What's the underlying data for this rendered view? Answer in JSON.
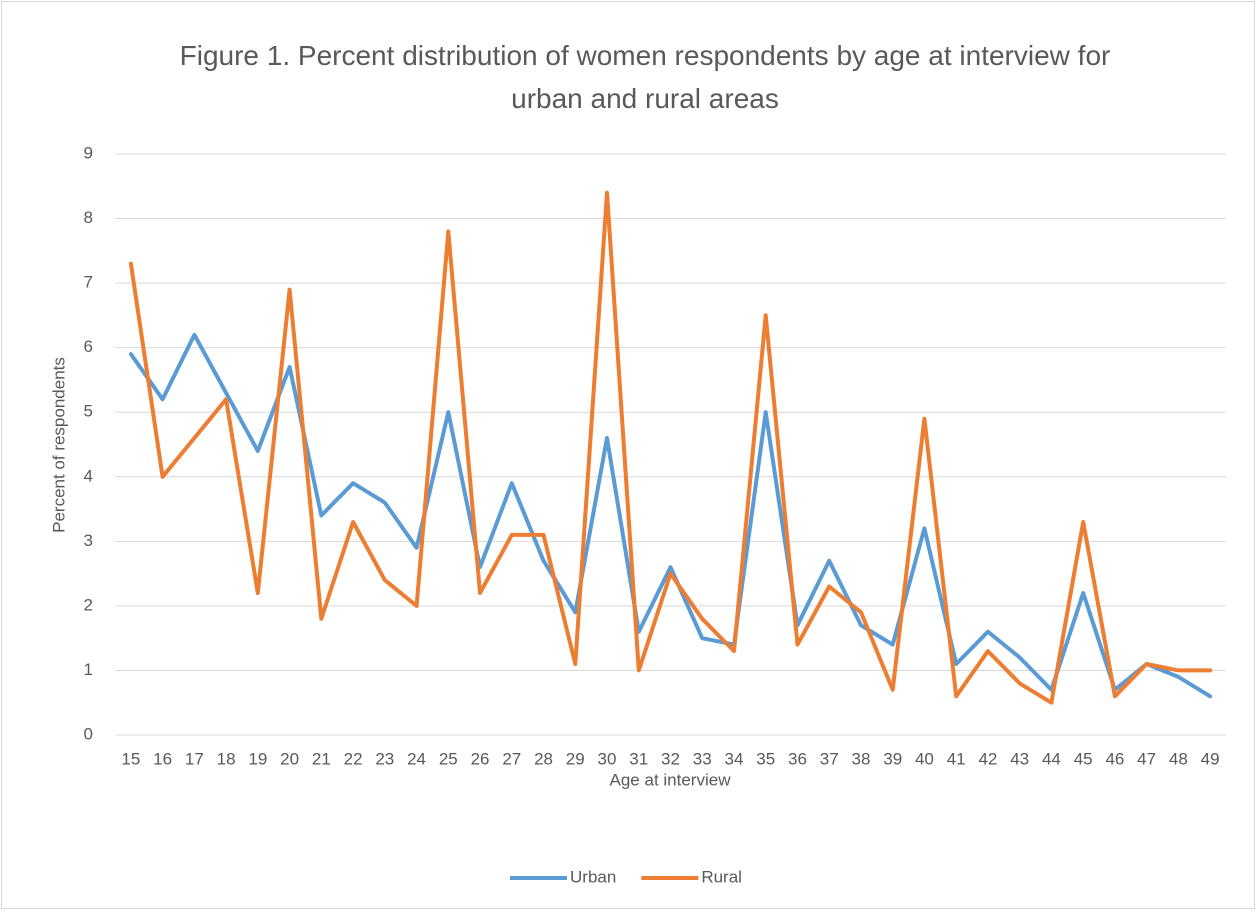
{
  "chart_data": {
    "type": "line",
    "title": "Figure 1. Percent distribution of women respondents by age at interview for urban and rural areas",
    "x_label": "Age at interview",
    "y_label": "Percent of respondents",
    "categories": [
      "15",
      "16",
      "17",
      "18",
      "19",
      "20",
      "21",
      "22",
      "23",
      "24",
      "25",
      "26",
      "27",
      "28",
      "29",
      "30",
      "31",
      "32",
      "33",
      "34",
      "35",
      "36",
      "37",
      "38",
      "39",
      "40",
      "41",
      "42",
      "43",
      "44",
      "45",
      "46",
      "47",
      "48",
      "49"
    ],
    "series": [
      {
        "name": "Urban",
        "color": "#5b9bd5",
        "values": [
          5.9,
          5.2,
          6.2,
          5.3,
          4.4,
          5.7,
          3.4,
          3.9,
          3.6,
          2.9,
          5.0,
          2.6,
          3.9,
          2.7,
          1.9,
          4.6,
          1.6,
          2.6,
          1.5,
          1.4,
          5.0,
          1.7,
          2.7,
          1.7,
          1.4,
          3.2,
          1.1,
          1.6,
          1.2,
          0.7,
          2.2,
          0.7,
          1.1,
          0.9,
          0.6
        ]
      },
      {
        "name": "Rural",
        "color": "#ed7d31",
        "values": [
          7.3,
          4.0,
          4.6,
          5.2,
          2.2,
          6.9,
          1.8,
          3.3,
          2.4,
          2.0,
          7.8,
          2.2,
          3.1,
          3.1,
          1.1,
          8.4,
          1.0,
          2.5,
          1.8,
          1.3,
          6.5,
          1.4,
          2.3,
          1.9,
          0.7,
          4.9,
          0.6,
          1.3,
          0.8,
          0.5,
          3.3,
          0.6,
          1.1,
          1.0,
          1.0
        ]
      }
    ],
    "ylim": [
      0,
      9
    ],
    "yticks": [
      0,
      1,
      2,
      3,
      4,
      5,
      6,
      7,
      8,
      9
    ],
    "grid": true,
    "legend": "bottom"
  }
}
